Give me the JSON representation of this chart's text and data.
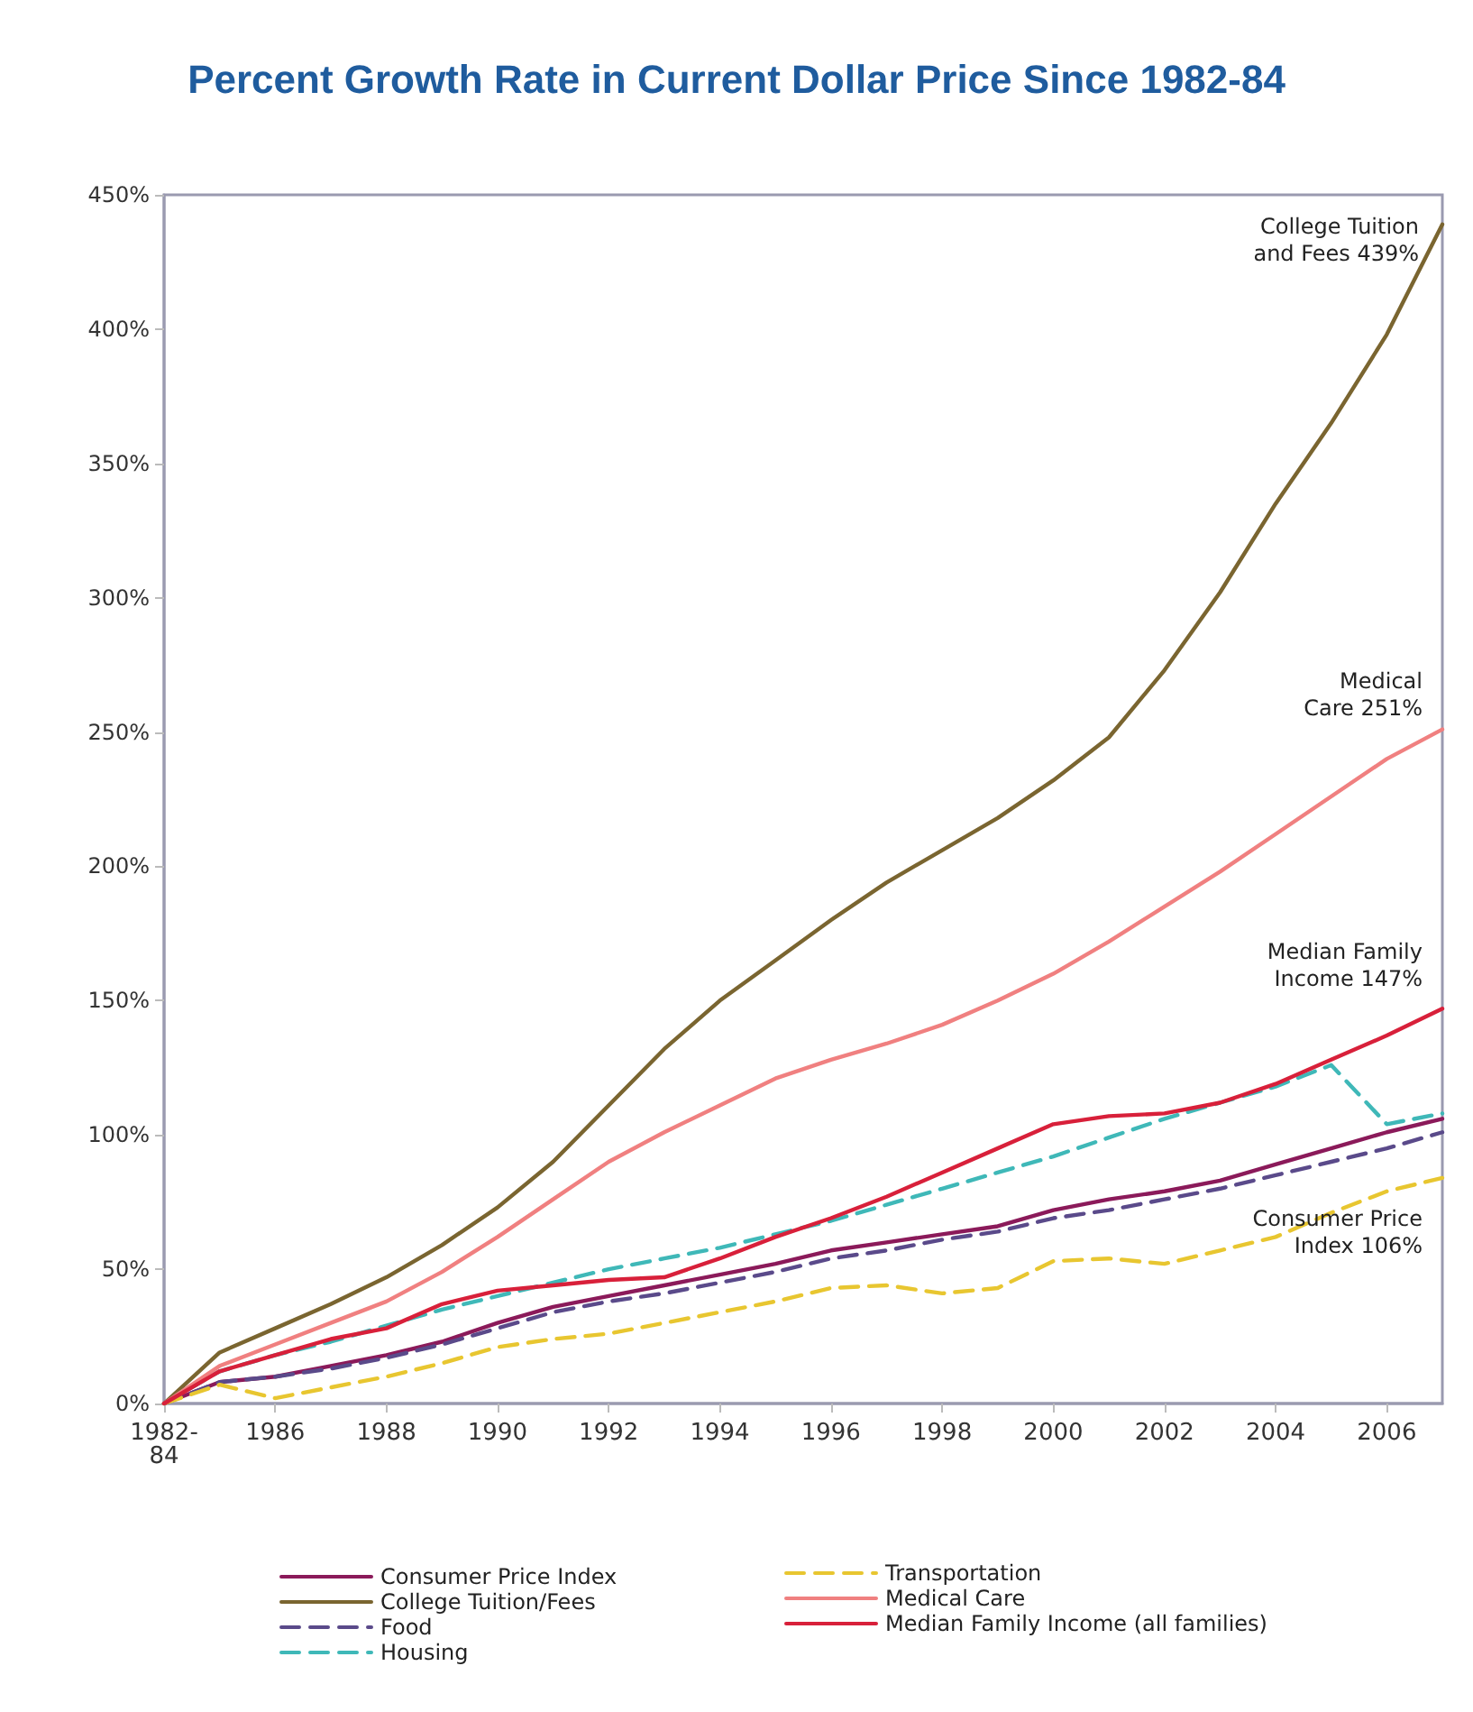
{
  "chart_data": {
    "type": "line",
    "title": "Percent Growth Rate in Current Dollar Price Since 1982-84",
    "x": [
      1984,
      1985,
      1986,
      1987,
      1988,
      1989,
      1990,
      1991,
      1992,
      1993,
      1994,
      1995,
      1996,
      1997,
      1998,
      1999,
      2000,
      2001,
      2002,
      2003,
      2004,
      2005,
      2006,
      2007
    ],
    "xlim": [
      1984,
      2007
    ],
    "xticks": [
      {
        "value": 1984,
        "label": "1982-\n84"
      },
      1986,
      1988,
      1990,
      1992,
      1994,
      1996,
      1998,
      2000,
      2002,
      2004,
      2006
    ],
    "ylim": [
      0,
      450
    ],
    "yticks": [
      {
        "value": 0,
        "label": "0%"
      },
      {
        "value": 50,
        "label": "50%"
      },
      {
        "value": 100,
        "label": "100%"
      },
      {
        "value": 150,
        "label": "150%"
      },
      {
        "value": 200,
        "label": "200%"
      },
      {
        "value": 250,
        "label": "250%"
      },
      {
        "value": 300,
        "label": "300%"
      },
      {
        "value": 350,
        "label": "350%"
      },
      {
        "value": 400,
        "label": "400%"
      },
      {
        "value": 450,
        "label": "450%"
      }
    ],
    "grid": false,
    "legend": "bottom",
    "marker": "none",
    "series": [
      {
        "name": "Consumer Price Index",
        "color": "#8b1a5a",
        "line_style": "solid",
        "values": [
          0,
          8,
          10,
          14,
          18,
          23,
          30,
          36,
          40,
          44,
          48,
          52,
          57,
          60,
          63,
          66,
          72,
          76,
          79,
          83,
          89,
          95,
          101,
          106
        ]
      },
      {
        "name": "College Tuition/Fees",
        "color": "#7a6530",
        "line_style": "solid",
        "values": [
          0,
          19,
          28,
          37,
          47,
          59,
          73,
          90,
          111,
          132,
          150,
          165,
          180,
          194,
          206,
          218,
          232,
          248,
          273,
          302,
          335,
          365,
          398,
          439
        ]
      },
      {
        "name": "Food",
        "color": "#5a4a8a",
        "line_style": "dashed",
        "values": [
          0,
          8,
          10,
          13,
          17,
          22,
          28,
          34,
          38,
          41,
          45,
          49,
          54,
          57,
          61,
          64,
          69,
          72,
          76,
          80,
          85,
          90,
          95,
          101
        ]
      },
      {
        "name": "Housing",
        "color": "#3fb8b8",
        "line_style": "dashed",
        "values": [
          0,
          12,
          18,
          23,
          29,
          35,
          40,
          45,
          50,
          54,
          58,
          63,
          68,
          74,
          80,
          86,
          92,
          99,
          106,
          112,
          118,
          126,
          104,
          108
        ]
      },
      {
        "name": "Transportation",
        "color": "#e8c630",
        "line_style": "dashed",
        "values": [
          0,
          7,
          2,
          6,
          10,
          15,
          21,
          24,
          26,
          30,
          34,
          38,
          43,
          44,
          41,
          43,
          53,
          54,
          52,
          57,
          62,
          71,
          79,
          84
        ]
      },
      {
        "name": "Medical Care",
        "color": "#f08080",
        "line_style": "solid",
        "values": [
          0,
          14,
          22,
          30,
          38,
          49,
          62,
          76,
          90,
          101,
          111,
          121,
          128,
          134,
          141,
          150,
          160,
          172,
          185,
          198,
          212,
          226,
          240,
          251
        ]
      },
      {
        "name": "Median Family Income (all families)",
        "color": "#d8203a",
        "line_style": "solid",
        "values": [
          0,
          12,
          18,
          24,
          28,
          37,
          42,
          44,
          46,
          47,
          54,
          62,
          69,
          77,
          86,
          95,
          104,
          107,
          108,
          112,
          119,
          128,
          137,
          147
        ]
      }
    ],
    "annotations": [
      "College Tuition\nand Fees 439%",
      "Medical\nCare 251%",
      "Median Family\nIncome 147%",
      "Consumer Price\nIndex 106%"
    ]
  }
}
